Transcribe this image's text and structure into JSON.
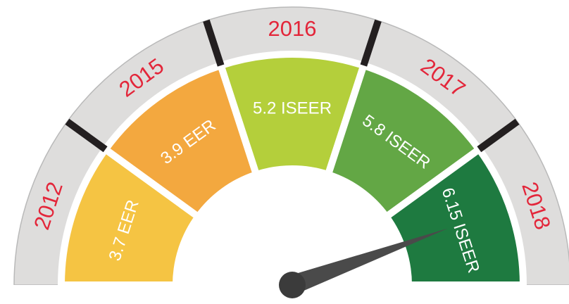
{
  "segments": [
    {
      "year": "2012",
      "rating": "3.7 EER",
      "color": "#f5c443"
    },
    {
      "year": "2015",
      "rating": "3.9 EER",
      "color": "#f3a83f"
    },
    {
      "year": "2016",
      "rating": "5.2 ISEER",
      "color": "#b4cf3b"
    },
    {
      "year": "2017",
      "rating": "5.8 ISEER",
      "color": "#63a745"
    },
    {
      "year": "2018",
      "rating": "6.15 ISEER",
      "color": "#1e7a40"
    }
  ]
}
